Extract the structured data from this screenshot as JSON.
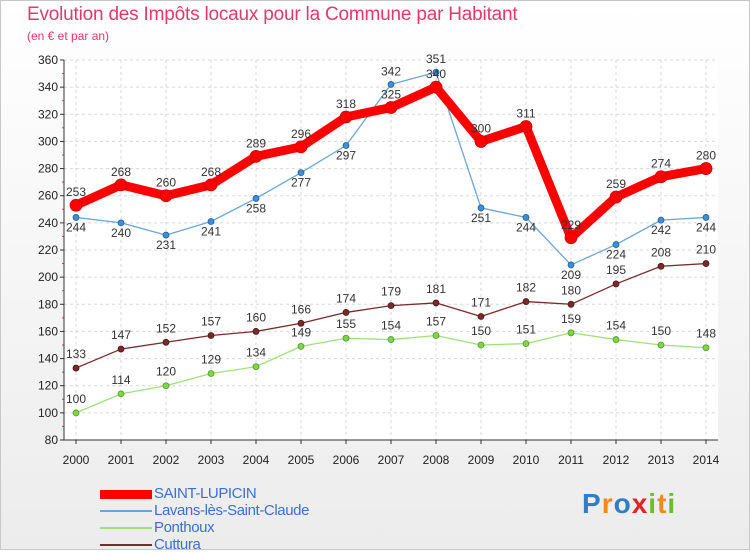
{
  "title": "Evolution des Impôts locaux pour la Commune par Habitant",
  "subtitle": "(en € et par an)",
  "logo": {
    "letters": [
      "P",
      "r",
      "o",
      "x",
      "i",
      "t",
      "i"
    ],
    "colors": [
      "#2e7fc8",
      "#f08a1c",
      "#2e7fc8",
      "#e02424",
      "#6cbf2a",
      "#f08a1c",
      "#6cbf2a"
    ]
  },
  "chart_data": {
    "type": "line",
    "title": "Evolution des Impôts locaux pour la Commune par Habitant",
    "subtitle": "(en € et par an)",
    "x": [
      "2000",
      "2001",
      "2002",
      "2003",
      "2004",
      "2005",
      "2006",
      "2007",
      "2008",
      "2009",
      "2010",
      "2011",
      "2012",
      "2013",
      "2014"
    ],
    "ylim": [
      80,
      360
    ],
    "yticks": [
      80,
      100,
      120,
      140,
      160,
      180,
      200,
      220,
      240,
      260,
      280,
      300,
      320,
      340,
      360
    ],
    "grid": true,
    "legend_position": "bottom-left",
    "series": [
      {
        "name": "Cuttura",
        "color": "#7a2a2a",
        "values": [
          133,
          147,
          152,
          157,
          160,
          166,
          174,
          179,
          181,
          171,
          182,
          180,
          195,
          208,
          210
        ]
      },
      {
        "name": "Ponthoux",
        "color": "#9fe07a",
        "values": [
          100,
          114,
          120,
          129,
          134,
          149,
          155,
          154,
          157,
          150,
          151,
          159,
          154,
          150,
          148
        ]
      },
      {
        "name": "Lavans-lès-Saint-Claude",
        "color": "#6aa6d8",
        "values": [
          244,
          240,
          231,
          241,
          258,
          277,
          297,
          342,
          351,
          251,
          244,
          209,
          224,
          242,
          244
        ]
      },
      {
        "name": "SAINT-LUPICIN",
        "color": "#ff0000",
        "values": [
          253,
          268,
          260,
          268,
          289,
          296,
          318,
          325,
          340,
          300,
          311,
          229,
          259,
          274,
          280
        ]
      }
    ],
    "legend_order": [
      "SAINT-LUPICIN",
      "Lavans-lès-Saint-Claude",
      "Ponthoux",
      "Cuttura"
    ]
  }
}
